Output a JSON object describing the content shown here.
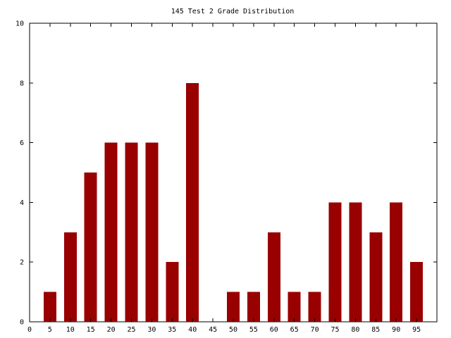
{
  "chart_data": {
    "type": "bar",
    "title": "145 Test 2 Grade Distribution",
    "xlabel": "",
    "ylabel": "",
    "x": [
      5,
      10,
      15,
      20,
      25,
      30,
      35,
      40,
      45,
      50,
      55,
      60,
      65,
      70,
      75,
      80,
      85,
      90,
      95
    ],
    "values": [
      1,
      3,
      5,
      6,
      6,
      6,
      2,
      8,
      0,
      1,
      1,
      3,
      1,
      1,
      4,
      4,
      3,
      4,
      2
    ],
    "xlim": [
      0,
      100
    ],
    "ylim": [
      0,
      10
    ],
    "xticks": [
      0,
      5,
      10,
      15,
      20,
      25,
      30,
      35,
      40,
      45,
      50,
      55,
      60,
      65,
      70,
      75,
      80,
      85,
      90,
      95
    ],
    "yticks": [
      0,
      2,
      4,
      6,
      8,
      10
    ],
    "grid": false,
    "legend": "none",
    "bar_color": "#990000",
    "axis_color": "#000000"
  }
}
